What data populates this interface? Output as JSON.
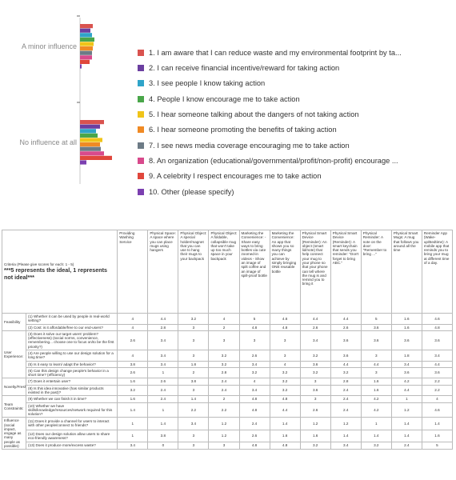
{
  "chart_data": {
    "type": "bar",
    "orientation": "horizontal",
    "categories": [
      "A minor influence",
      "No influence at all"
    ],
    "series": [
      {
        "name": "1. I am aware that I can reduce waste and my environmental footprint by ta...",
        "color": "#d9534f",
        "values": [
          16,
          30
        ]
      },
      {
        "name": "2. I can receive financial incentive/reward for taking action",
        "color": "#6b3fa0",
        "values": [
          13,
          25
        ]
      },
      {
        "name": "3. I see people I know taking action",
        "color": "#2fa4c9",
        "values": [
          15,
          20
        ]
      },
      {
        "name": "4. People I know encourage me to take action",
        "color": "#4aa64a",
        "values": [
          18,
          22
        ]
      },
      {
        "name": "5. I hear someone talking about the dangers of not taking action",
        "color": "#f0c419",
        "values": [
          17,
          28
        ]
      },
      {
        "name": "6. I hear someone promoting the benefits of taking action",
        "color": "#f08a24",
        "values": [
          16,
          25
        ]
      },
      {
        "name": "7. I see news media coverage encouraging me to take action",
        "color": "#6d7b86",
        "values": [
          15,
          26
        ]
      },
      {
        "name": "8. An organization (educational/governmental/profit/non-profit) encourage ...",
        "color": "#d84a8c",
        "values": [
          15,
          30
        ]
      },
      {
        "name": "9. A celebrity I respect encourages me to take action",
        "color": "#e0473c",
        "values": [
          12,
          40
        ]
      },
      {
        "name": "10. Other (please specify)",
        "color": "#7b3fb0",
        "values": [
          2,
          8
        ]
      }
    ],
    "legend_position": "right",
    "grid": false
  },
  "table": {
    "intro_small": "Criteria (Please give scores for each: 1 - 5)",
    "intro_big": "***5 represents the ideal, 1 represents not ideal***",
    "columns": [
      "Providing Washing Service",
      "Physical Space: A space where you can place mugs using hangers",
      "Physical Object: A special holder/magnet that you can use to hang their mugs to your backpack",
      "Physical Object: A foldable, collapsible mug that won't take up too much space in your backpack",
      "Marketing the Convenience: - Share easy ways to bring bottles via cute zoomed-in videos - Show an image of spilt coffee and an image of spill-proof bottle",
      "Marketing the Convenience: An app that shows you so many things you can achieve by simply bringing ONE reusable bottle",
      "Physical Smart Device (Reminder): An object (smart lid/note) that help connect your mug to your phone so that your phone can tell where the mug is and remind you to bring it",
      "Physical Smart Device (Reminder): A smart keychain that sends you reminder: \"Don't forget to bring ABC.\"",
      "Physical Reminder: A note on the door: \"Remember to bring ...\"",
      "Physical Smart Mugs: A mug that follows you around all the time",
      "Reminder App (Wake-up/Bedtime): A mobile app that reminds you to bring your mug at different time of a day."
    ],
    "rows": [
      {
        "group": "Feasibility",
        "span": 2,
        "q": "(1) Whether it can be used by people in real-world setting?",
        "v": [
          "4",
          "4.4",
          "3.2",
          "4",
          "5",
          "4.6",
          "4.4",
          "4.4",
          "5",
          "1.6",
          "4.6"
        ]
      },
      {
        "group": "",
        "span": 0,
        "q": "(2) Cost: is it affordable/free to our end-users?",
        "v": [
          "4",
          "2.8",
          "3",
          "2",
          "4.8",
          "4.8",
          "2.6",
          "2.6",
          "3.6",
          "1.6",
          "4.8"
        ]
      },
      {
        "group": "User Experience:",
        "span": 4,
        "q": "(3) Does it solve our target users' problem? (effectiveness) (social norms, convenience, remembering... choose one to focus on/to be the first priority?)",
        "v": [
          "2.6",
          "3.4",
          "3",
          "3",
          "3",
          "3",
          "3.4",
          "3.6",
          "3.6",
          "3.6",
          "3.6"
        ]
      },
      {
        "group": "",
        "span": 0,
        "q": "(4) Are people willing to use our design solution for a long time?",
        "v": [
          "4",
          "3.4",
          "3",
          "3.2",
          "2.6",
          "3",
          "3.2",
          "3.6",
          "3",
          "1.8",
          "3.4"
        ]
      },
      {
        "group": "",
        "span": 0,
        "q": "(5) Is it easy to learn/ adapt the behavior?",
        "v": [
          "3.8",
          "3.4",
          "1.8",
          "3.2",
          "3.4",
          "4",
          "3.6",
          "4.4",
          "4.4",
          "3.4",
          "4.4"
        ]
      },
      {
        "group": "",
        "span": 0,
        "q": "(6) Can this design change people's behavior in a short time? (efficiency)",
        "v": [
          "2.6",
          "1",
          "2",
          "2.8",
          "3.2",
          "3.2",
          "3.2",
          "3.2",
          "3",
          "3.6",
          "3.6"
        ]
      },
      {
        "group": "Novelty/Freshness:",
        "span": 2,
        "q": "(7) Does it entertain user?",
        "v": [
          "1.6",
          "2.6",
          "3.8",
          "2.4",
          "4",
          "3.2",
          "3",
          "2.8",
          "1.6",
          "4.2",
          "2.2"
        ]
      },
      {
        "group": "",
        "span": 0,
        "q": "(8) Is this idea innovative (has similar products existed in the past)?",
        "v": [
          "3.2",
          "2.4",
          "3",
          "2.4",
          "3.4",
          "3.2",
          "3.6",
          "2.4",
          "1.6",
          "4.4",
          "2.2"
        ]
      },
      {
        "group": "Team Constraints:",
        "span": 2,
        "q": "(9) Whether we can finish it in time?",
        "v": [
          "1.6",
          "2.4",
          "1.4",
          "2",
          "4.8",
          "4.8",
          "3",
          "2.4",
          "4.2",
          "1",
          "4"
        ]
      },
      {
        "group": "",
        "span": 0,
        "q": "(10) Whether we have skills/knowledge/resources/network required for this solution?",
        "v": [
          "1.4",
          "1",
          "2.2",
          "2.2",
          "4.8",
          "4.4",
          "2.6",
          "2.4",
          "4.2",
          "1.2",
          "4.6"
        ]
      },
      {
        "group": "Influence (social impact, engage as many people as possible):",
        "span": 3,
        "q": "(11) Does it provide a channel for users to interact with other people/connect to friends?",
        "v": [
          "1",
          "1.4",
          "3.4",
          "1.2",
          "2.4",
          "1.4",
          "1.2",
          "1.2",
          "1",
          "1.4",
          "1.4"
        ]
      },
      {
        "group": "",
        "span": 0,
        "q": "(12) Does our design solution allow users to share eco-friendly awareness?",
        "v": [
          "1",
          "3.8",
          "3",
          "1.2",
          "2.6",
          "1.6",
          "1.6",
          "1.4",
          "1.4",
          "1.4",
          "1.6"
        ]
      },
      {
        "group": "",
        "span": 0,
        "q": "(13) Does it produce more/excess waste?",
        "v": [
          "3.4",
          "0",
          "3",
          "3",
          "4.8",
          "4.8",
          "3.2",
          "3.4",
          "3.2",
          "2.4",
          "5"
        ]
      }
    ]
  }
}
